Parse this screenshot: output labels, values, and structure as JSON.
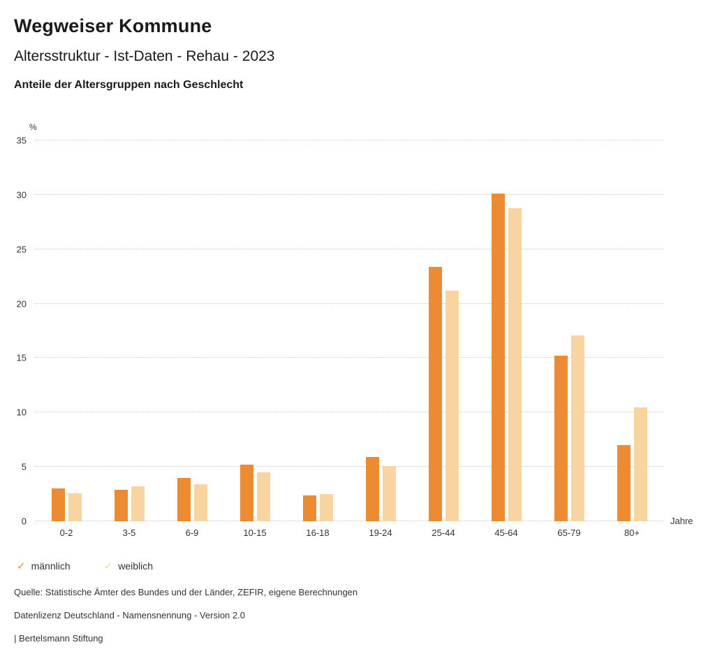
{
  "header": {
    "title": "Wegweiser Kommune",
    "subtitle": "Altersstruktur - Ist-Daten - Rehau - 2023",
    "chart_heading": "Anteile der Altersgruppen nach Geschlecht"
  },
  "chart_data": {
    "type": "bar",
    "title": "Anteile der Altersgruppen nach Geschlecht",
    "unit": "%",
    "xlabel": "Jahre",
    "ylabel": "%",
    "ylim": [
      0,
      35
    ],
    "ytick_step": 5,
    "grid": "dotted-horizontal",
    "legend_position": "bottom",
    "categories": [
      "0-2",
      "3-5",
      "6-9",
      "10-15",
      "16-18",
      "19-24",
      "25-44",
      "45-64",
      "65-79",
      "80+"
    ],
    "series": [
      {
        "name": "männlich",
        "color": "#ED8B33",
        "values": [
          3.0,
          2.9,
          4.0,
          5.2,
          2.4,
          5.9,
          23.4,
          30.1,
          15.2,
          7.0
        ]
      },
      {
        "name": "weiblich",
        "color": "#F8D4A0",
        "values": [
          2.6,
          3.2,
          3.4,
          4.5,
          2.5,
          5.1,
          21.2,
          28.8,
          17.1,
          10.5
        ]
      }
    ]
  },
  "footer": {
    "lines": [
      "Quelle: Statistische Ämter des Bundes und der Länder, ZEFIR, eigene Berechnungen",
      "Datenlizenz Deutschland - Namensnennung - Version 2.0",
      "| Bertelsmann Stiftung"
    ]
  }
}
